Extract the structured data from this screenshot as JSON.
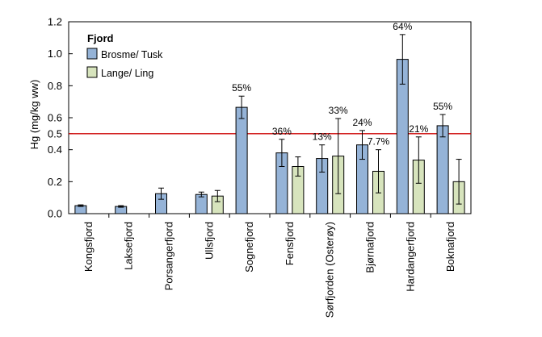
{
  "chart_data": {
    "type": "bar",
    "title": "",
    "xlabel": "",
    "ylabel": "Hg (mg/kg ww)",
    "ylim": [
      0,
      1.2
    ],
    "yticks": [
      "0.0",
      "0.2",
      "0.4",
      "0.5",
      "0.6",
      "0.8",
      "1.0",
      "1.2"
    ],
    "ytick_values": [
      0.0,
      0.2,
      0.4,
      0.5,
      0.6,
      0.8,
      1.0,
      1.2
    ],
    "grid": false,
    "legend": {
      "title": "Fjord",
      "position": "top-left"
    },
    "reference_line": {
      "value": 0.5,
      "color": "#cc0000"
    },
    "categories": [
      "Kongsfjord",
      "Laksefjord",
      "Porsangerfjord",
      "Ullsfjord",
      "Sognefjord",
      "Fensfjord",
      "Sørfjorden (Osterøy)",
      "Bjørnafjord",
      "Hardangerfjord",
      "Boknafjord"
    ],
    "series": [
      {
        "name": "Brosme/ Tusk",
        "color": "#95b3d7",
        "values": [
          0.05,
          0.045,
          0.125,
          0.12,
          0.665,
          0.38,
          0.345,
          0.43,
          0.965,
          0.55
        ],
        "errors": [
          0.005,
          0.005,
          0.035,
          0.015,
          0.07,
          0.085,
          0.085,
          0.09,
          0.155,
          0.07
        ],
        "labels": [
          "",
          "",
          "",
          "",
          "55%",
          "36%",
          "13%",
          "24%",
          "64%",
          "55%"
        ]
      },
      {
        "name": "Lange/ Ling",
        "color": "#d7e4bd",
        "values": [
          null,
          null,
          null,
          0.11,
          null,
          0.295,
          0.36,
          0.265,
          0.335,
          0.2
        ],
        "errors": [
          null,
          null,
          null,
          0.035,
          null,
          0.06,
          0.235,
          0.135,
          0.145,
          0.14
        ],
        "labels": [
          "",
          "",
          "",
          "",
          "",
          "",
          "33%",
          "7.7%",
          "21%",
          ""
        ]
      }
    ]
  }
}
